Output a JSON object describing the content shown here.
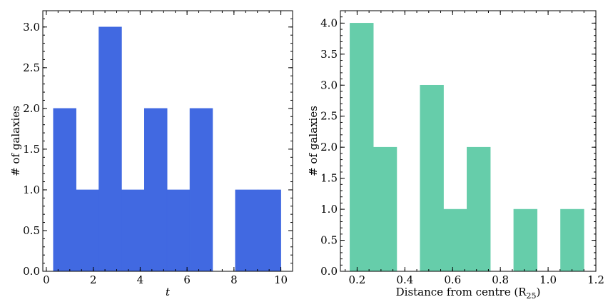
{
  "chart_data": [
    {
      "type": "bar",
      "xlabel": "t",
      "ylabel": "# of galaxies",
      "xlim": [
        -0.15,
        10.5
      ],
      "ylim": [
        0.0,
        3.2
      ],
      "xticks": [
        0,
        2,
        4,
        6,
        8,
        10
      ],
      "xtick_labels": [
        "0",
        "2",
        "4",
        "6",
        "8",
        "10"
      ],
      "yticks": [
        0.0,
        0.5,
        1.0,
        1.5,
        2.0,
        2.5,
        3.0
      ],
      "ytick_labels": [
        "0.0",
        "0.5",
        "1.0",
        "1.5",
        "2.0",
        "2.5",
        "3.0"
      ],
      "grid": false,
      "color": "#4169E1",
      "bins": [
        {
          "x0": 0.3,
          "x1": 1.27,
          "value": 2
        },
        {
          "x0": 1.27,
          "x1": 2.24,
          "value": 1
        },
        {
          "x0": 2.24,
          "x1": 3.21,
          "value": 3
        },
        {
          "x0": 3.21,
          "x1": 4.18,
          "value": 1
        },
        {
          "x0": 4.18,
          "x1": 5.15,
          "value": 2
        },
        {
          "x0": 5.15,
          "x1": 6.12,
          "value": 1
        },
        {
          "x0": 6.12,
          "x1": 7.09,
          "value": 2
        },
        {
          "x0": 7.09,
          "x1": 8.06,
          "value": 0
        },
        {
          "x0": 8.06,
          "x1": 9.03,
          "value": 1
        },
        {
          "x0": 9.03,
          "x1": 10.0,
          "value": 1
        }
      ]
    },
    {
      "type": "bar",
      "xlabel": "Distance from centre (R",
      "xlabel_sub": "25",
      "xlabel_tail": ")",
      "ylabel": "# of galaxies",
      "xlim": [
        0.13,
        1.2
      ],
      "ylim": [
        0.0,
        4.2
      ],
      "xticks": [
        0.2,
        0.4,
        0.6,
        0.8,
        1.0,
        1.2
      ],
      "xtick_labels": [
        "0.2",
        "0.4",
        "0.6",
        "0.8",
        "1.0",
        "1.2"
      ],
      "yticks": [
        0.0,
        0.5,
        1.0,
        1.5,
        2.0,
        2.5,
        3.0,
        3.5,
        4.0
      ],
      "ytick_labels": [
        "0.0",
        "0.5",
        "1.0",
        "1.5",
        "2.0",
        "2.5",
        "3.0",
        "3.5",
        "4.0"
      ],
      "grid": false,
      "color": "#66CDAA",
      "bins": [
        {
          "x0": 0.17,
          "x1": 0.268,
          "value": 4
        },
        {
          "x0": 0.268,
          "x1": 0.366,
          "value": 2
        },
        {
          "x0": 0.366,
          "x1": 0.464,
          "value": 0
        },
        {
          "x0": 0.464,
          "x1": 0.562,
          "value": 3
        },
        {
          "x0": 0.562,
          "x1": 0.66,
          "value": 1
        },
        {
          "x0": 0.66,
          "x1": 0.758,
          "value": 2
        },
        {
          "x0": 0.758,
          "x1": 0.856,
          "value": 0
        },
        {
          "x0": 0.856,
          "x1": 0.954,
          "value": 1
        },
        {
          "x0": 0.954,
          "x1": 1.052,
          "value": 0
        },
        {
          "x0": 1.052,
          "x1": 1.15,
          "value": 1
        }
      ]
    }
  ]
}
